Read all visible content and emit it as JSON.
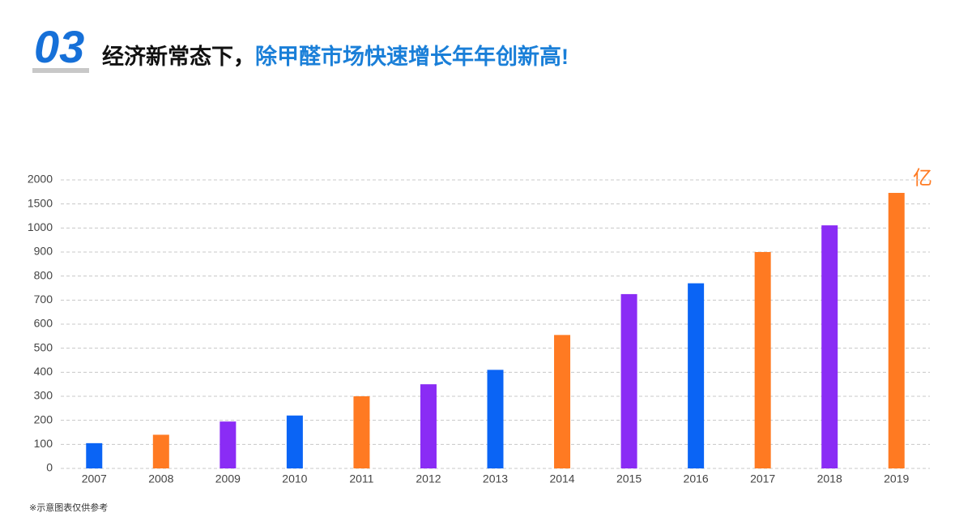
{
  "header": {
    "number": "03",
    "title_black": "经济新常态下，",
    "title_blue": "除甲醛市场快速增长年年创新高!"
  },
  "chart_data": {
    "type": "bar",
    "y_unit": "亿",
    "categories": [
      "2007",
      "2008",
      "2009",
      "2010",
      "2011",
      "2012",
      "2013",
      "2014",
      "2015",
      "2016",
      "2017",
      "2018",
      "2019"
    ],
    "values": [
      105,
      140,
      195,
      220,
      300,
      350,
      410,
      555,
      725,
      770,
      900,
      1055,
      1730
    ],
    "colors": [
      "#0a64f5",
      "#ff7a22",
      "#8a2cf5",
      "#0a64f5",
      "#ff7a22",
      "#8a2cf5",
      "#0a64f5",
      "#ff7a22",
      "#8a2cf5",
      "#0a64f5",
      "#ff7a22",
      "#8a2cf5",
      "#ff7a22"
    ],
    "ylim": [
      0,
      2000
    ],
    "yticks": [
      0,
      100,
      200,
      300,
      400,
      500,
      600,
      700,
      800,
      900,
      1000,
      1500,
      2000
    ],
    "grid": true
  },
  "footnote": "※示意图表仅供参考"
}
